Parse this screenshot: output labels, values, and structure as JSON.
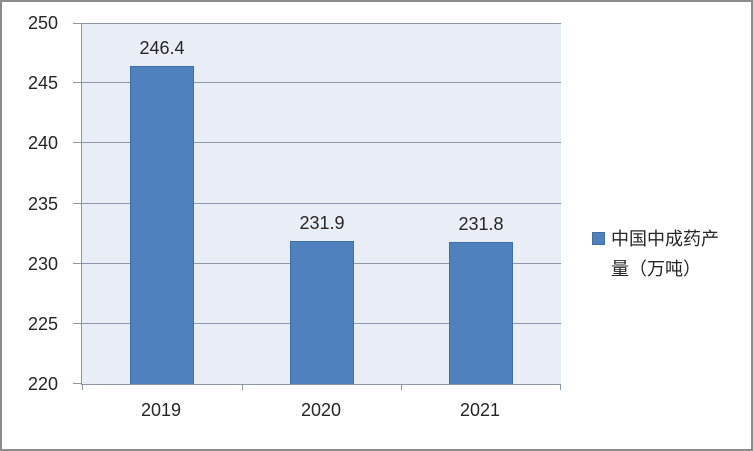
{
  "chart_data": {
    "type": "bar",
    "title": "",
    "xlabel": "",
    "ylabel": "",
    "categories": [
      "2019",
      "2020",
      "2021"
    ],
    "series": [
      {
        "name": "中国中成药产量（万吨）",
        "values": [
          246.4,
          231.9,
          231.8
        ],
        "labels": [
          "246.4",
          "231.9",
          "231.8"
        ]
      }
    ],
    "ylim": [
      220,
      250
    ],
    "yticks": [
      220,
      225,
      230,
      235,
      240,
      245,
      250
    ],
    "grid": true,
    "legend_position": "right",
    "legend_lines": [
      "中国中成药产",
      "量（万吨）"
    ]
  },
  "colors": {
    "bar_fill": "#4F81BD",
    "bar_border": "#3E6FA8",
    "plot_background": "#E9EDF5",
    "gridline": "#8F96A7",
    "axis": "#8F96A7",
    "text": "#262626",
    "frame_border": "#8C8C8C",
    "background": "#FFFFFF"
  }
}
